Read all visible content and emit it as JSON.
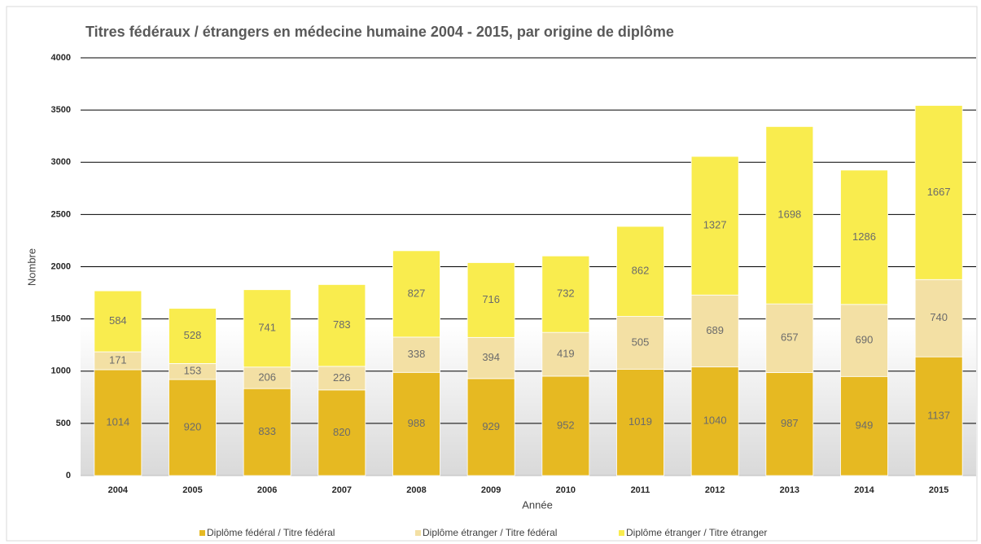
{
  "chart_data": {
    "type": "stacked_bar",
    "title": "Titres fédéraux / étrangers en médecine humaine 2004 - 2015, par origine de diplôme",
    "x_label": "Année",
    "y_label": "Nombre",
    "categories": [
      "2004",
      "2005",
      "2006",
      "2007",
      "2008",
      "2009",
      "2010",
      "2011",
      "2012",
      "2013",
      "2014",
      "2015"
    ],
    "series": [
      {
        "name": "Diplôme fédéral / Titre fédéral",
        "color": "#e6b922",
        "values": [
          1014,
          920,
          833,
          820,
          988,
          929,
          952,
          1019,
          1040,
          987,
          949,
          1137
        ]
      },
      {
        "name": "Diplôme étranger / Titre fédéral",
        "color": "#f3e0a4",
        "values": [
          171,
          153,
          206,
          226,
          338,
          394,
          419,
          505,
          689,
          657,
          690,
          740
        ]
      },
      {
        "name": "Diplôme étranger / Titre étranger",
        "color": "#f9ec4e",
        "values": [
          584,
          528,
          741,
          783,
          827,
          716,
          732,
          862,
          1327,
          1698,
          1286,
          1667
        ]
      }
    ],
    "ylim": [
      0,
      4000
    ],
    "yticks": [
      0,
      500,
      1000,
      1500,
      2000,
      2500,
      3000,
      3500,
      4000
    ],
    "grid": true,
    "legend": "bottom"
  }
}
